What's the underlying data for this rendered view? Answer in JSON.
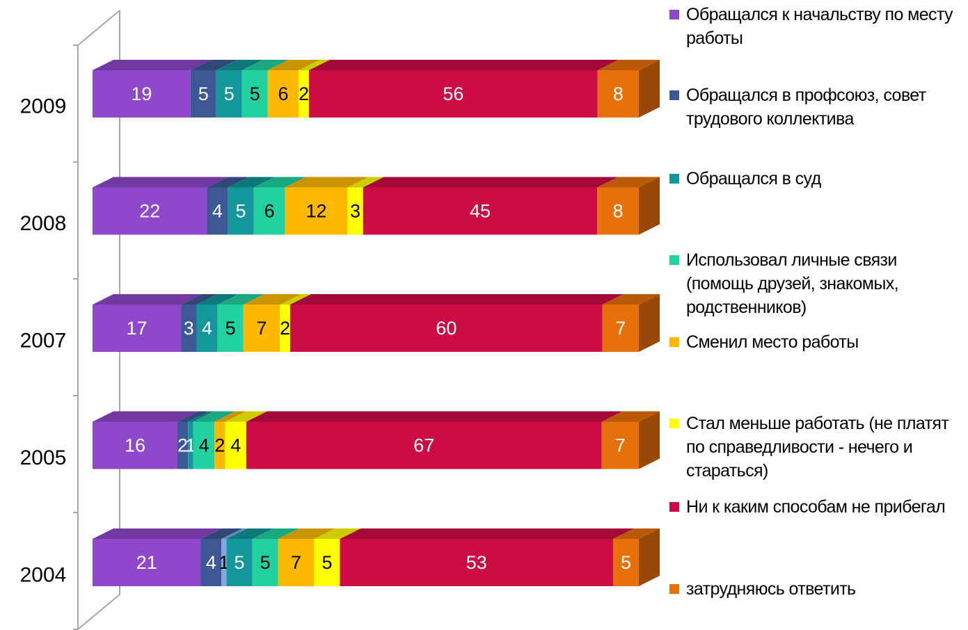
{
  "chart_data": {
    "type": "bar3d_stacked_horizontal",
    "categories": [
      "2009",
      "2008",
      "2007",
      "2005",
      "2004"
    ],
    "series": [
      {
        "name": "Обращался к начальству по месту работы",
        "color": "#8f47cb",
        "values": [
          19,
          22,
          17,
          16,
          21
        ]
      },
      {
        "name": "Обращался в профсоюз, совет трудового коллектива",
        "color": "#3c5996",
        "values": [
          5,
          4,
          3,
          2,
          4
        ]
      },
      {
        "name": null,
        "color": "#7fa7e2",
        "values": [
          null,
          null,
          null,
          null,
          1
        ]
      },
      {
        "name": "Обращался в суд",
        "color": "#12979a",
        "values": [
          5,
          5,
          4,
          1,
          5
        ]
      },
      {
        "name": "Использовал личные связи (помощь друзей, знакомых, родственников)",
        "color": "#1fd2a0",
        "values": [
          5,
          6,
          5,
          4,
          5
        ]
      },
      {
        "name": "Сменил место работы",
        "color": "#fdb900",
        "values": [
          6,
          12,
          7,
          2,
          7
        ]
      },
      {
        "name": "Стал меньше работать (не платят по справедливости - нечего и стараться)",
        "color": "#ffff00",
        "values": [
          2,
          3,
          2,
          4,
          5
        ]
      },
      {
        "name": "Ни к каким способам не прибегал",
        "color": "#cc0c45",
        "values": [
          56,
          45,
          60,
          67,
          53
        ]
      },
      {
        "name": "затрудняюсь ответить",
        "color": "#e8700a",
        "values": [
          8,
          8,
          7,
          7,
          5
        ]
      }
    ]
  }
}
